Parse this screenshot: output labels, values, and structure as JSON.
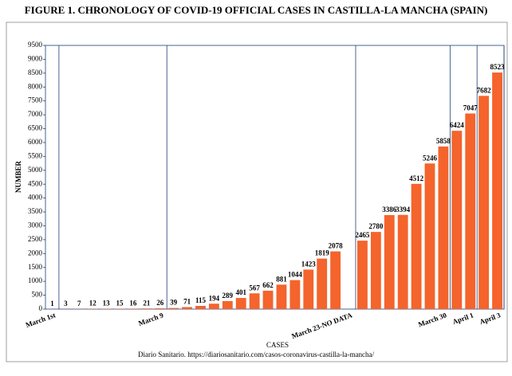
{
  "chart_data": {
    "type": "bar",
    "title": "FIGURE 1. CHRONOLOGY OF COVID-19 OFFICIAL CASES IN CASTILLA-LA MANCHA (SPAIN)",
    "x_label": "CASES",
    "y_label": "NUMBER",
    "source": "Diario Sanitario. https://diariosanitario.com/casos-coronavirus-castilla-la-mancha/",
    "categories": [
      "March 1st",
      null,
      null,
      null,
      null,
      null,
      null,
      null,
      "March 9",
      null,
      null,
      null,
      null,
      null,
      null,
      null,
      null,
      null,
      null,
      null,
      null,
      null,
      "March 23-NO DATA",
      null,
      null,
      null,
      null,
      null,
      null,
      "March 30",
      null,
      "April 1",
      null,
      "April 3"
    ],
    "values": [
      1,
      3,
      7,
      12,
      13,
      15,
      16,
      21,
      26,
      39,
      71,
      115,
      194,
      289,
      401,
      567,
      662,
      881,
      1044,
      1423,
      1819,
      2078,
      null,
      2465,
      2780,
      3386,
      3394,
      4512,
      5246,
      5858,
      6424,
      7047,
      7682,
      8523
    ],
    "color": "#f4642c",
    "ylim": [
      0,
      9500
    ],
    "yticks": [
      0,
      500,
      1000,
      1500,
      2000,
      2500,
      3000,
      3500,
      4000,
      4500,
      5000,
      5500,
      6000,
      6500,
      7000,
      7500,
      8000,
      8500,
      9000,
      9500
    ]
  }
}
